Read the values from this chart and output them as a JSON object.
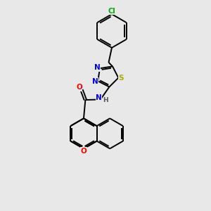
{
  "background_color": "#e8e8e8",
  "bond_color": "#000000",
  "N_color": "#0000ee",
  "S_color": "#aaaa00",
  "O_color": "#ff0000",
  "Cl_color": "#00aa00",
  "line_width": 1.4,
  "figsize": [
    3.0,
    3.0
  ],
  "dpi": 100,
  "xlim": [
    0,
    10
  ],
  "ylim": [
    0,
    10
  ]
}
